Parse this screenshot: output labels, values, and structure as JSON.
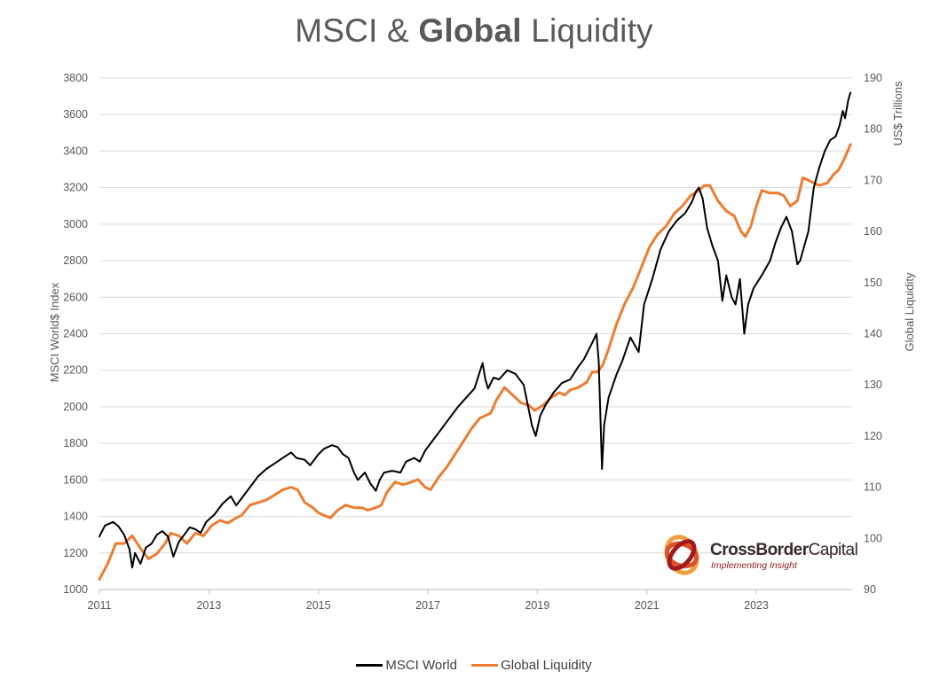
{
  "title_parts": {
    "normal1": "MSCI & ",
    "bold": "Global",
    "normal2": " Liquidity"
  },
  "logo": {
    "name_bold": "CrossBorder",
    "name_rest": "Capital",
    "tagline": "Implementing Insight"
  },
  "colors": {
    "msci": "#000000",
    "liquidity": "#ed7d31",
    "grid": "#d9d9d9",
    "text": "#595959"
  },
  "chart_data": {
    "type": "line",
    "title": "MSCI & Global Liquidity",
    "ylabel_left": "MSCI World$ Index",
    "ylabel_right_top": "US$ Trillions",
    "ylabel_right": "Global Liquidity",
    "x_tick_labels": [
      "2011",
      "2013",
      "2015",
      "2017",
      "2019",
      "2021",
      "2023"
    ],
    "xlim": [
      2011.0,
      2024.75
    ],
    "y_left_ticks": [
      1000,
      1200,
      1400,
      1600,
      1800,
      2000,
      2200,
      2400,
      2600,
      2800,
      3000,
      3200,
      3400,
      3600,
      3800
    ],
    "y_left_lim": [
      1000,
      3800
    ],
    "y_right_ticks": [
      90,
      100,
      110,
      120,
      130,
      140,
      150,
      160,
      170,
      180,
      190
    ],
    "y_right_lim": [
      90,
      190
    ],
    "grid": "horizontal",
    "legend_position": "bottom-center",
    "series": [
      {
        "name": "MSCI World",
        "axis": "left",
        "x": [
          2011.0,
          2011.1,
          2011.25,
          2011.35,
          2011.45,
          2011.55,
          2011.6,
          2011.65,
          2011.75,
          2011.85,
          2011.95,
          2012.05,
          2012.15,
          2012.25,
          2012.35,
          2012.45,
          2012.55,
          2012.65,
          2012.75,
          2012.85,
          2012.95,
          2013.1,
          2013.25,
          2013.4,
          2013.5,
          2013.6,
          2013.75,
          2013.9,
          2014.05,
          2014.2,
          2014.35,
          2014.5,
          2014.6,
          2014.75,
          2014.85,
          2015.0,
          2015.1,
          2015.25,
          2015.35,
          2015.45,
          2015.55,
          2015.65,
          2015.72,
          2015.85,
          2015.95,
          2016.05,
          2016.12,
          2016.2,
          2016.35,
          2016.5,
          2016.6,
          2016.75,
          2016.85,
          2016.95,
          2017.1,
          2017.25,
          2017.4,
          2017.55,
          2017.7,
          2017.85,
          2018.0,
          2018.05,
          2018.1,
          2018.2,
          2018.3,
          2018.45,
          2018.6,
          2018.75,
          2018.9,
          2018.97,
          2019.05,
          2019.15,
          2019.3,
          2019.45,
          2019.6,
          2019.75,
          2019.85,
          2020.0,
          2020.08,
          2020.12,
          2020.18,
          2020.22,
          2020.3,
          2020.45,
          2020.55,
          2020.7,
          2020.85,
          2020.95,
          2021.1,
          2021.25,
          2021.4,
          2021.55,
          2021.7,
          2021.82,
          2021.9,
          2021.95,
          2022.02,
          2022.1,
          2022.2,
          2022.3,
          2022.38,
          2022.45,
          2022.55,
          2022.62,
          2022.7,
          2022.78,
          2022.85,
          2022.95,
          2023.1,
          2023.25,
          2023.35,
          2023.45,
          2023.55,
          2023.65,
          2023.75,
          2023.8,
          2023.95,
          2024.05,
          2024.15,
          2024.25,
          2024.35,
          2024.45,
          2024.52,
          2024.58,
          2024.62,
          2024.68,
          2024.72
        ],
        "y": [
          1290,
          1350,
          1370,
          1345,
          1300,
          1220,
          1120,
          1200,
          1140,
          1230,
          1250,
          1300,
          1320,
          1290,
          1180,
          1260,
          1300,
          1340,
          1330,
          1310,
          1370,
          1410,
          1470,
          1510,
          1460,
          1500,
          1560,
          1620,
          1660,
          1690,
          1720,
          1750,
          1720,
          1710,
          1680,
          1740,
          1770,
          1790,
          1780,
          1740,
          1720,
          1640,
          1600,
          1640,
          1580,
          1540,
          1600,
          1640,
          1650,
          1640,
          1700,
          1720,
          1700,
          1760,
          1820,
          1880,
          1940,
          2000,
          2050,
          2100,
          2240,
          2150,
          2100,
          2160,
          2150,
          2200,
          2180,
          2120,
          1900,
          1840,
          1950,
          2010,
          2080,
          2130,
          2150,
          2220,
          2260,
          2350,
          2400,
          2250,
          1660,
          1900,
          2050,
          2180,
          2250,
          2380,
          2300,
          2560,
          2700,
          2860,
          2960,
          3020,
          3060,
          3120,
          3180,
          3200,
          3140,
          2980,
          2880,
          2800,
          2580,
          2720,
          2600,
          2560,
          2700,
          2400,
          2560,
          2650,
          2720,
          2800,
          2900,
          2980,
          3040,
          2960,
          2780,
          2800,
          2960,
          3200,
          3310,
          3400,
          3460,
          3480,
          3540,
          3620,
          3580,
          3680,
          3720
        ]
      },
      {
        "name": "Global Liquidity",
        "axis": "right",
        "x": [
          2011.0,
          2011.15,
          2011.3,
          2011.45,
          2011.6,
          2011.75,
          2011.9,
          2012.05,
          2012.2,
          2012.3,
          2012.45,
          2012.6,
          2012.75,
          2012.9,
          2013.05,
          2013.2,
          2013.35,
          2013.5,
          2013.6,
          2013.75,
          2013.9,
          2014.05,
          2014.2,
          2014.35,
          2014.5,
          2014.62,
          2014.75,
          2014.9,
          2015.0,
          2015.1,
          2015.22,
          2015.35,
          2015.5,
          2015.65,
          2015.8,
          2015.9,
          2016.05,
          2016.15,
          2016.25,
          2016.4,
          2016.55,
          2016.7,
          2016.82,
          2016.95,
          2017.05,
          2017.2,
          2017.35,
          2017.5,
          2017.65,
          2017.8,
          2017.95,
          2018.05,
          2018.15,
          2018.25,
          2018.4,
          2018.55,
          2018.7,
          2018.85,
          2018.95,
          2019.1,
          2019.25,
          2019.4,
          2019.5,
          2019.6,
          2019.75,
          2019.9,
          2020.0,
          2020.1,
          2020.2,
          2020.3,
          2020.45,
          2020.6,
          2020.75,
          2020.9,
          2021.05,
          2021.2,
          2021.35,
          2021.5,
          2021.65,
          2021.8,
          2021.95,
          2022.05,
          2022.15,
          2022.3,
          2022.45,
          2022.6,
          2022.72,
          2022.8,
          2022.9,
          2023.0,
          2023.1,
          2023.25,
          2023.4,
          2023.5,
          2023.62,
          2023.75,
          2023.85,
          2023.95,
          2024.05,
          2024.15,
          2024.3,
          2024.4,
          2024.5,
          2024.6,
          2024.72
        ],
        "y": [
          92,
          95,
          99,
          99,
          100.5,
          98,
          96,
          97,
          99,
          101,
          100.5,
          99,
          101,
          100.5,
          102.5,
          103.5,
          103,
          104,
          104.5,
          106.5,
          107,
          107.5,
          108.5,
          109.5,
          110,
          109.5,
          107,
          106,
          105,
          104.5,
          104,
          105.5,
          106.5,
          106,
          106,
          105.5,
          106,
          106.5,
          109,
          111,
          110.5,
          111,
          111.5,
          110,
          109.5,
          112,
          114,
          116.5,
          119,
          121.5,
          123.5,
          124,
          124.5,
          127,
          129.5,
          128,
          126.5,
          126,
          125,
          126,
          127.5,
          128.5,
          128,
          129,
          129.5,
          130.5,
          132.5,
          132.5,
          134,
          137,
          142,
          146,
          149,
          153,
          157,
          159.5,
          161,
          163.5,
          165,
          167,
          168,
          169,
          169,
          166,
          164,
          163,
          160,
          159,
          161,
          165,
          168,
          167.5,
          167.5,
          167,
          165,
          166,
          170.5,
          170,
          169.5,
          169,
          169.5,
          171,
          172,
          174,
          177
        ]
      }
    ]
  }
}
